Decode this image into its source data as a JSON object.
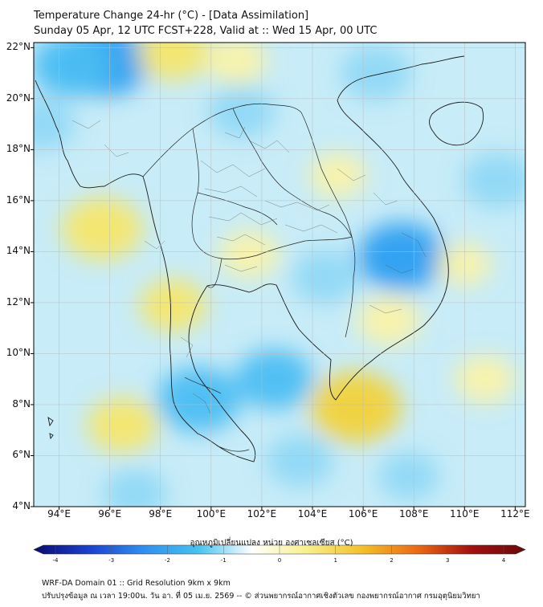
{
  "title": {
    "line1": "Temperature Change 24-hr (°C) - [Data Assimilation]",
    "line2": "Sunday 05 Apr, 12 UTC FCST+228, Valid at :: Wed 15 Apr, 00 UTC"
  },
  "axes": {
    "lat_labels": [
      "22°N",
      "20°N",
      "18°N",
      "16°N",
      "14°N",
      "12°N",
      "10°N",
      "8°N",
      "6°N",
      "4°N"
    ],
    "lon_labels": [
      "94°E",
      "96°E",
      "98°E",
      "100°E",
      "102°E",
      "104°E",
      "106°E",
      "108°E",
      "110°E",
      "112°E"
    ],
    "lat_range": [
      4,
      22.2
    ],
    "lon_range": [
      93,
      112.4
    ]
  },
  "colorbar": {
    "title": "อุณหภูมิเปลี่ยนแปลง หน่วย องศาเซลเซียส (°C)",
    "ticks": [
      "-4",
      "-3",
      "-2",
      "-1",
      "0",
      "1",
      "2",
      "3",
      "4"
    ],
    "range": [
      -4,
      4
    ],
    "colors": [
      "#0a0a6e",
      "#1c3fd0",
      "#2f8ef0",
      "#43c2f0",
      "#ffffff",
      "#f8f08a",
      "#f2c228",
      "#ee6b12",
      "#a31010",
      "#6b0808"
    ]
  },
  "footer": {
    "line1": "WRF-DA Domain 01 :: Grid Resolution 9km x 9km",
    "line2": "ปรับปรุงข้อมูล ณ เวลา 19:00น. วัน อา. ที่ 05 เม.ย. 2569 -- © ส่วนพยากรณ์อากาศเชิงตัวเลข กองพยากรณ์อากาศ กรมอุตุนิยมวิทยา"
  },
  "map_data": {
    "field": "24-hr temperature change (°C)",
    "warm_anomalies": [
      {
        "lon": 98.5,
        "lat": 21.8,
        "value": 0.9
      },
      {
        "lon": 101.0,
        "lat": 21.5,
        "value": 0.6
      },
      {
        "lon": 95.7,
        "lat": 14.9,
        "value": 1.2
      },
      {
        "lon": 105.7,
        "lat": 7.9,
        "value": 1.5
      },
      {
        "lon": 96.5,
        "lat": 7.2,
        "value": 0.9
      },
      {
        "lon": 98.5,
        "lat": 11.9,
        "value": 0.8
      },
      {
        "lon": 101.5,
        "lat": 13.9,
        "value": 0.6
      },
      {
        "lon": 107.0,
        "lat": 11.3,
        "value": 0.7
      },
      {
        "lon": 105.0,
        "lat": 17.0,
        "value": 0.5
      },
      {
        "lon": 110.8,
        "lat": 9.0,
        "value": 0.6
      },
      {
        "lon": 110.0,
        "lat": 13.5,
        "value": 0.4
      }
    ],
    "cool_anomalies": [
      {
        "lon": 95.8,
        "lat": 21.5,
        "value": -1.5
      },
      {
        "lon": 94.5,
        "lat": 21.3,
        "value": -1.2
      },
      {
        "lon": 107.5,
        "lat": 13.8,
        "value": -1.4
      },
      {
        "lon": 99.5,
        "lat": 8.2,
        "value": -1.3
      },
      {
        "lon": 102.5,
        "lat": 9.0,
        "value": -1.1
      },
      {
        "lon": 106.5,
        "lat": 21.0,
        "value": -0.9
      },
      {
        "lon": 111.3,
        "lat": 16.8,
        "value": -0.9
      },
      {
        "lon": 101.2,
        "lat": 19.5,
        "value": -0.8
      },
      {
        "lon": 93.3,
        "lat": 19.0,
        "value": -0.8
      },
      {
        "lon": 103.5,
        "lat": 5.8,
        "value": -0.8
      },
      {
        "lon": 104.5,
        "lat": 13.0,
        "value": -0.8
      },
      {
        "lon": 97.0,
        "lat": 4.5,
        "value": -0.7
      },
      {
        "lon": 107.8,
        "lat": 5.2,
        "value": -0.6
      }
    ]
  }
}
